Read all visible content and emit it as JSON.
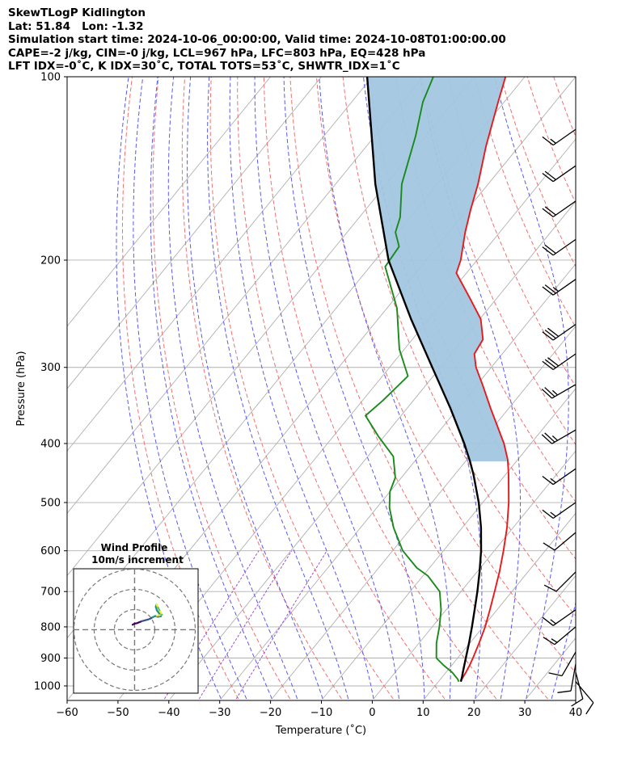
{
  "header": {
    "line1": "SkewTLogP Kidlington",
    "line2": "Lat: 51.84   Lon: -1.32",
    "line3": "Simulation start time: 2024-10-06_00:00:00, Valid time: 2024-10-08T01:00:00.00",
    "line4": "CAPE=-2 j/kg, CIN=-0 j/kg, LCL=967 hPa, LFC=803 hPa, EQ=428 hPa",
    "line5": "LFT IDX=-0˚C, K IDX=30˚C, TOTAL TOTS=53˚C, SHWTR_IDX=1˚C"
  },
  "chart_data": {
    "type": "skew-t log-p",
    "xlabel": "Temperature (˚C)",
    "ylabel": "Pressure (hPa)",
    "xlim": [
      -60,
      40
    ],
    "ylim": [
      1050,
      100
    ],
    "x_ticks": [
      "−60",
      "−50",
      "−40",
      "−30",
      "−20",
      "−10",
      "0",
      "10",
      "20",
      "30",
      "40"
    ],
    "p_ticks": [
      "100",
      "200",
      "300",
      "400",
      "500",
      "600",
      "700",
      "800",
      "900",
      "1000"
    ],
    "grid": true,
    "colors": {
      "temperature": "#e8191a",
      "dewpoint": "#1a8a1a",
      "parcel": "#000000",
      "shade": "#a3c6e0",
      "dry_adiabat": "#f07070",
      "moist_adiabat": "#5a5aee",
      "mixing_ratio": "#9a4fd6",
      "isotherm": "#b0b0b0"
    },
    "temperature": [
      [
        984,
        14.4
      ],
      [
        975,
        14.2
      ],
      [
        950,
        13.9
      ],
      [
        925,
        13.5
      ],
      [
        900,
        13.0
      ],
      [
        850,
        11.8
      ],
      [
        800,
        10.4
      ],
      [
        750,
        8.6
      ],
      [
        700,
        6.6
      ],
      [
        650,
        4.4
      ],
      [
        600,
        1.8
      ],
      [
        550,
        -1.2
      ],
      [
        500,
        -4.9
      ],
      [
        450,
        -9.4
      ],
      [
        425,
        -12.0
      ],
      [
        400,
        -15.3
      ],
      [
        350,
        -23.6
      ],
      [
        320,
        -29.0
      ],
      [
        300,
        -33.0
      ],
      [
        285,
        -35.5
      ],
      [
        270,
        -36.1
      ],
      [
        250,
        -39.8
      ],
      [
        230,
        -45.6
      ],
      [
        210,
        -52.0
      ],
      [
        200,
        -53.2
      ],
      [
        180,
        -56.8
      ],
      [
        165,
        -59.4
      ],
      [
        150,
        -62.0
      ],
      [
        130,
        -66.5
      ],
      [
        110,
        -71.2
      ],
      [
        100,
        -73.8
      ]
    ],
    "dewpoint": [
      [
        984,
        14.0
      ],
      [
        975,
        13.4
      ],
      [
        950,
        11.2
      ],
      [
        925,
        8.4
      ],
      [
        900,
        5.8
      ],
      [
        850,
        3.4
      ],
      [
        800,
        1.4
      ],
      [
        750,
        -1.0
      ],
      [
        700,
        -4.2
      ],
      [
        660,
        -9.0
      ],
      [
        640,
        -12.5
      ],
      [
        600,
        -18.0
      ],
      [
        550,
        -23.5
      ],
      [
        510,
        -27.5
      ],
      [
        480,
        -30.0
      ],
      [
        455,
        -31.2
      ],
      [
        420,
        -35.0
      ],
      [
        390,
        -41.0
      ],
      [
        360,
        -47.0
      ],
      [
        340,
        -46.0
      ],
      [
        310,
        -45.0
      ],
      [
        280,
        -51.0
      ],
      [
        240,
        -58.0
      ],
      [
        205,
        -67.0
      ],
      [
        190,
        -67.5
      ],
      [
        180,
        -70.5
      ],
      [
        170,
        -72.0
      ],
      [
        150,
        -77.0
      ],
      [
        125,
        -82.0
      ],
      [
        110,
        -86.0
      ],
      [
        100,
        -88.0
      ]
    ],
    "parcel": [
      [
        984,
        14.4
      ],
      [
        967,
        13.9
      ],
      [
        950,
        13.3
      ],
      [
        900,
        11.6
      ],
      [
        850,
        9.8
      ],
      [
        800,
        7.8
      ],
      [
        750,
        5.6
      ],
      [
        700,
        3.2
      ],
      [
        650,
        0.5
      ],
      [
        600,
        -2.6
      ],
      [
        550,
        -6.3
      ],
      [
        500,
        -10.8
      ],
      [
        450,
        -16.3
      ],
      [
        428,
        -19.1
      ],
      [
        400,
        -23.1
      ],
      [
        350,
        -31.5
      ],
      [
        300,
        -41.6
      ],
      [
        250,
        -53.5
      ],
      [
        200,
        -67.4
      ],
      [
        150,
        -82.2
      ],
      [
        100,
        -101.0
      ]
    ],
    "wind_barbs": [
      {
        "p": 984,
        "speed_kt": 10,
        "dir_deg": 140
      },
      {
        "p": 950,
        "speed_kt": 10,
        "dir_deg": 165
      },
      {
        "p": 920,
        "speed_kt": 10,
        "dir_deg": 190
      },
      {
        "p": 880,
        "speed_kt": 10,
        "dir_deg": 210
      },
      {
        "p": 800,
        "speed_kt": 15,
        "dir_deg": 230
      },
      {
        "p": 750,
        "speed_kt": 15,
        "dir_deg": 235
      },
      {
        "p": 650,
        "speed_kt": 10,
        "dir_deg": 225
      },
      {
        "p": 560,
        "speed_kt": 10,
        "dir_deg": 230
      },
      {
        "p": 500,
        "speed_kt": 15,
        "dir_deg": 235
      },
      {
        "p": 440,
        "speed_kt": 15,
        "dir_deg": 235
      },
      {
        "p": 380,
        "speed_kt": 25,
        "dir_deg": 240
      },
      {
        "p": 320,
        "speed_kt": 25,
        "dir_deg": 240
      },
      {
        "p": 285,
        "speed_kt": 30,
        "dir_deg": 235
      },
      {
        "p": 255,
        "speed_kt": 30,
        "dir_deg": 235
      },
      {
        "p": 215,
        "speed_kt": 25,
        "dir_deg": 235
      },
      {
        "p": 185,
        "speed_kt": 20,
        "dir_deg": 235
      },
      {
        "p": 160,
        "speed_kt": 20,
        "dir_deg": 235
      },
      {
        "p": 140,
        "speed_kt": 20,
        "dir_deg": 235
      },
      {
        "p": 122,
        "speed_kt": 15,
        "dir_deg": 235
      }
    ],
    "hodograph": {
      "title": "Wind Profile",
      "subtitle": "10m/s increment",
      "rings_ms": [
        10,
        20,
        30
      ],
      "points": [
        [
          -1,
          2.5
        ],
        [
          0,
          3.0
        ],
        [
          1,
          3.2
        ],
        [
          2,
          3.6
        ],
        [
          3.5,
          4.2
        ],
        [
          5,
          4.6
        ],
        [
          6.5,
          5.0
        ],
        [
          8,
          5.6
        ],
        [
          9,
          6.2
        ],
        [
          10.2,
          6.8
        ],
        [
          11.5,
          6.4
        ],
        [
          13.0,
          6.6
        ],
        [
          12.2,
          8.0
        ],
        [
          11.0,
          9.6
        ],
        [
          10.5,
          11.4
        ],
        [
          10.8,
          12.6
        ],
        [
          11.6,
          11.0
        ],
        [
          12.6,
          9.0
        ],
        [
          13.6,
          7.4
        ],
        [
          12.4,
          7.2
        ],
        [
          11.0,
          7.0
        ]
      ]
    }
  }
}
